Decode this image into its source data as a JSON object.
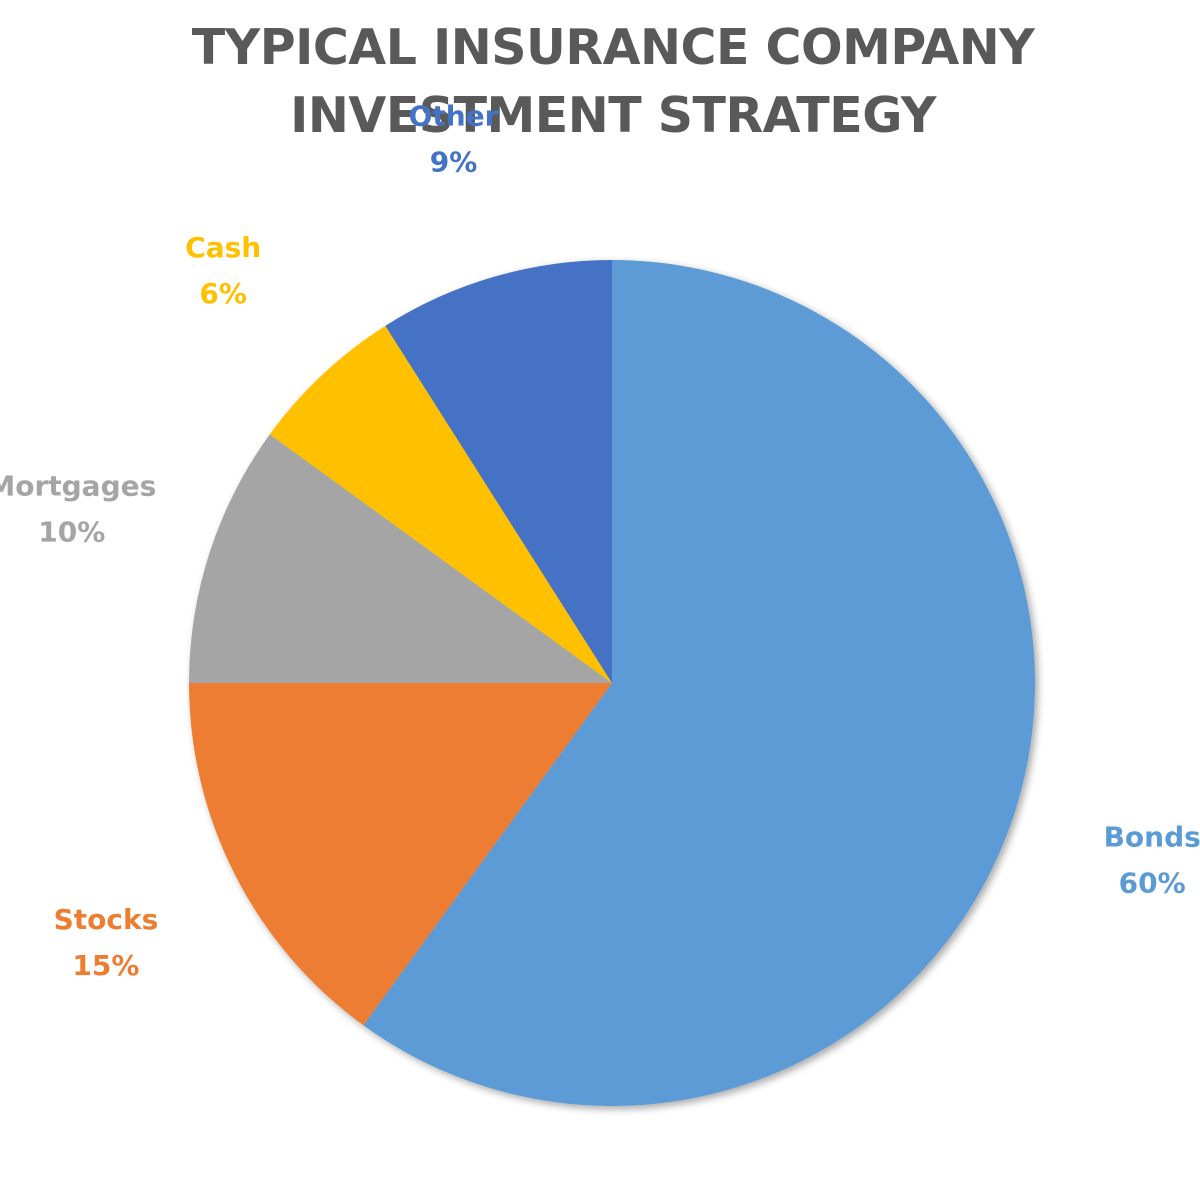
{
  "chart_data": {
    "type": "pie",
    "title_lines": [
      "TYPICAL INSURANCE COMPANY",
      "INVESTMENT STRATEGY"
    ],
    "slices": [
      {
        "name": "Bonds",
        "value": 60,
        "label": "60%",
        "color": "#5B9BD5"
      },
      {
        "name": "Stocks",
        "value": 15,
        "label": "15%",
        "color": "#ED7D31"
      },
      {
        "name": "Mortgages",
        "value": 10,
        "label": "10%",
        "color": "#A5A5A5"
      },
      {
        "name": "Cash",
        "value": 6,
        "label": "6%",
        "color": "#FFC000"
      },
      {
        "name": "Other",
        "value": 9,
        "label": "9%",
        "color": "#4472C4"
      }
    ],
    "start_angle": "12 o'clock",
    "direction": "clockwise",
    "legend": "none",
    "data_labels": "category name and percentage, outside end"
  }
}
